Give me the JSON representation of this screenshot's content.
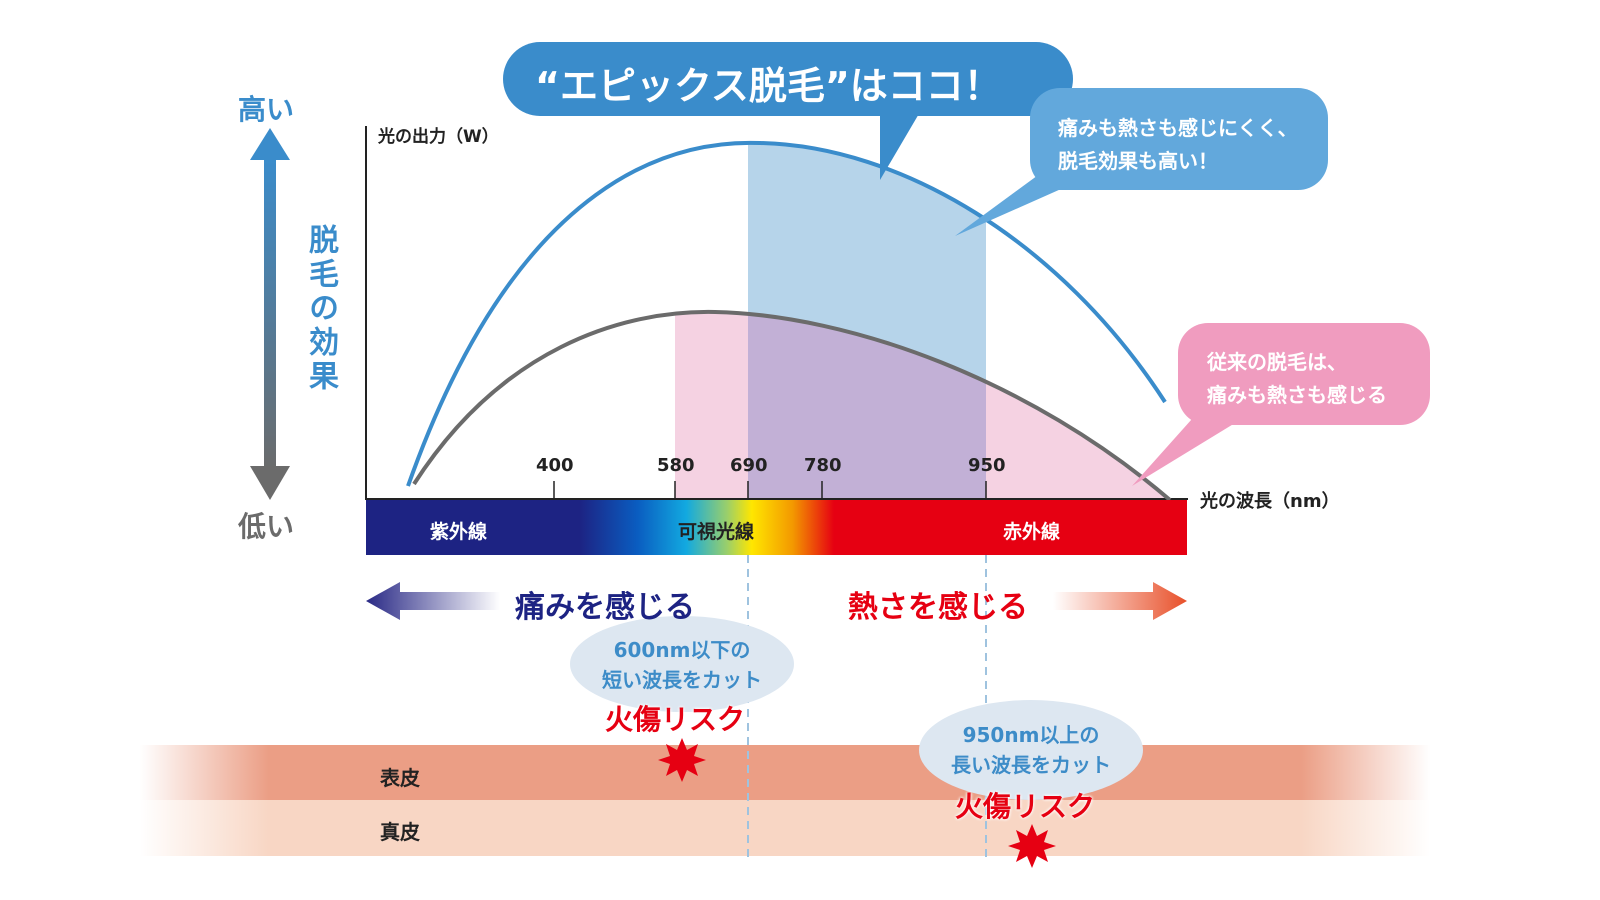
{
  "effect_axis": {
    "high": "高い",
    "low": "低い",
    "label": "脱毛の効果"
  },
  "chart": {
    "y_axis_label": "光の出力（W）",
    "x_axis_label": "光の波長（nm）",
    "ticks": [
      "400",
      "580",
      "690",
      "780",
      "950"
    ],
    "spectrum": {
      "uv": "紫外線",
      "visible": "可視光線",
      "ir": "赤外線"
    }
  },
  "callouts": {
    "title": "“エピックス脱毛”はココ！",
    "epix_line1": "痛みも熱さも感じにくく、",
    "epix_line2": "脱毛効果も高い！",
    "conventional_line1": "従来の脱毛は、",
    "conventional_line2": "痛みも熱さも感じる"
  },
  "sensations": {
    "pain": "痛みを感じる",
    "heat": "熱さを感じる"
  },
  "notes": {
    "short_line1": "600nm以下の",
    "short_line2": "短い波長をカット",
    "long_line1": "950nm以上の",
    "long_line2": "長い波長をカット",
    "risk_left": "火傷リスク",
    "risk_right": "火傷リスク"
  },
  "skin": {
    "epidermis": "表皮",
    "dermis": "真皮"
  },
  "colors": {
    "blue": "#3a8ccb",
    "gray": "#6b6b6b",
    "pink": "#f0a0c0",
    "red": "#e60012",
    "navy": "#1d2383"
  }
}
